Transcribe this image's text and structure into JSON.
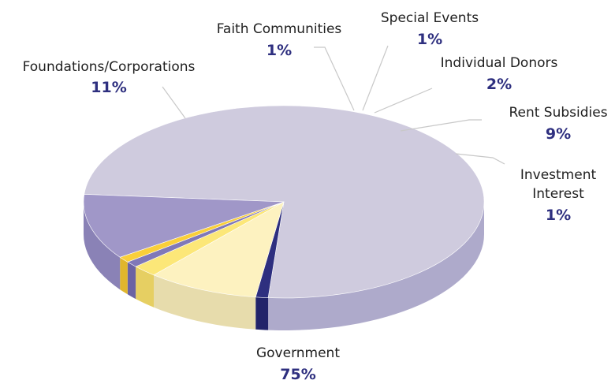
{
  "chart_data": {
    "type": "pie",
    "style": "3d",
    "title": "",
    "slices": [
      {
        "label": "Government",
        "value": 75,
        "pct_text": "75%",
        "color": "#cfcbde",
        "side_color": "#aeaacb"
      },
      {
        "label": "Foundations/Corporations",
        "value": 11,
        "pct_text": "11%",
        "color": "#a097c8",
        "side_color": "#8a82b6"
      },
      {
        "label": "Faith Communities",
        "value": 1,
        "pct_text": "1%",
        "color": "#f9cf3a",
        "side_color": "#e0b62c"
      },
      {
        "label": "Special Events",
        "value": 1,
        "pct_text": "1%",
        "color": "#8078b8",
        "side_color": "#6b63a3"
      },
      {
        "label": "Individual Donors",
        "value": 2,
        "pct_text": "2%",
        "color": "#fce778",
        "side_color": "#e6cf62"
      },
      {
        "label": "Rent Subsidies",
        "value": 9,
        "pct_text": "9%",
        "color": "#fdf2c0",
        "side_color": "#e7dcac"
      },
      {
        "label": "Investment Interest",
        "value": 1,
        "pct_text": "1%",
        "color": "#2e2f7f",
        "side_color": "#22236a"
      }
    ]
  }
}
